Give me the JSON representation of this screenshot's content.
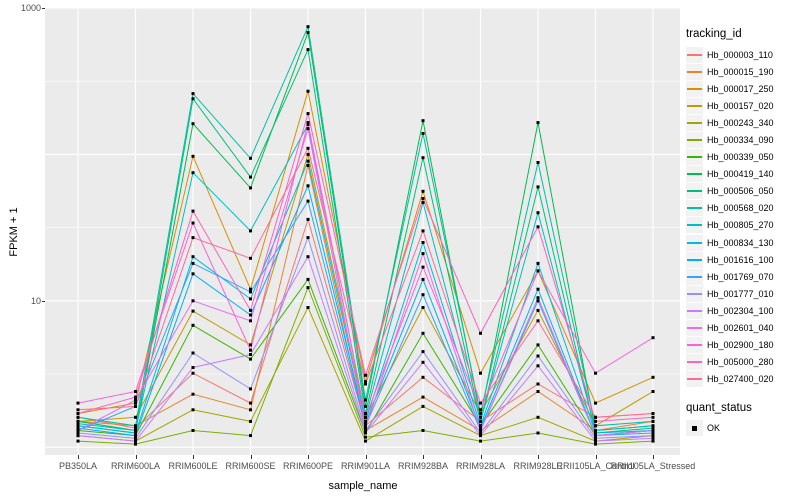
{
  "chart_data": {
    "type": "line",
    "title": "",
    "xlabel": "sample_name",
    "ylabel": "FPKM + 1",
    "y_scale": "log10",
    "ylim": [
      1,
      1000
    ],
    "grid": true,
    "y_tick_labels": [
      {
        "label": "10",
        "value": 10
      },
      {
        "label": "1000",
        "value": 1000
      }
    ],
    "y_major_gridlines": [
      1,
      10,
      100,
      1000
    ],
    "y_minor_gridlines": [
      3.162,
      31.62,
      316.2
    ],
    "categories": [
      "PB350LA",
      "RRIM600LA",
      "RRIM600LE",
      "RRIM600SE",
      "RRIM600PE",
      "RRIM901LA",
      "RRIM928BA",
      "RRIM928LA",
      "RRIM928LE",
      "RRII105LA_Control",
      "RRII105LA_Stressed"
    ],
    "point_marker": {
      "shape": "square",
      "color": "#000000",
      "size": 3
    },
    "legend": {
      "title": "tracking_id",
      "position": "right"
    },
    "legend2": {
      "title": "quant_status",
      "items": [
        {
          "label": "OK",
          "marker": "black-square"
        }
      ]
    },
    "colors": {
      "panel_bg": "#EBEBEB",
      "grid": "#FFFFFF",
      "axis_text": "#4D4D4D",
      "axis_title": "#000000",
      "tick": "#333333",
      "legend_key_bg": "#F2F2F2"
    },
    "series": [
      {
        "name": "Hb_000003_110",
        "color": "#F8766D",
        "values": [
          1.6,
          1.35,
          3.2,
          2.0,
          36,
          1.4,
          3.0,
          1.5,
          2.7,
          1.6,
          1.7
        ]
      },
      {
        "name": "Hb_000015_190",
        "color": "#EA8331",
        "values": [
          1.5,
          1.4,
          2.3,
          1.8,
          84,
          1.3,
          2.2,
          1.3,
          2.4,
          1.3,
          1.5
        ]
      },
      {
        "name": "Hb_000017_250",
        "color": "#D89000",
        "values": [
          1.7,
          2.0,
          97,
          12,
          270,
          2.8,
          56,
          3.2,
          16,
          2.0,
          3.0
        ]
      },
      {
        "name": "Hb_000157_020",
        "color": "#C09B00",
        "values": [
          1.5,
          1.6,
          8.5,
          5.0,
          100,
          1.6,
          9.0,
          1.7,
          8.6,
          1.4,
          2.4
        ]
      },
      {
        "name": "Hb_000243_340",
        "color": "#A3A500",
        "values": [
          1.2,
          1.1,
          1.8,
          1.5,
          9.0,
          1.1,
          1.9,
          1.2,
          1.6,
          1.1,
          1.2
        ]
      },
      {
        "name": "Hb_000334_090",
        "color": "#7CAE00",
        "values": [
          1.1,
          1.05,
          1.3,
          1.2,
          12.3,
          1.17,
          1.3,
          1.1,
          1.25,
          1.05,
          1.1
        ]
      },
      {
        "name": "Hb_000339_050",
        "color": "#39B600",
        "values": [
          1.3,
          1.2,
          6.8,
          4.0,
          14,
          1.25,
          6.0,
          1.4,
          5.0,
          1.2,
          1.3
        ]
      },
      {
        "name": "Hb_000419_140",
        "color": "#00BB4E",
        "values": [
          1.5,
          1.3,
          162,
          59,
          680,
          1.9,
          170,
          1.6,
          165,
          1.3,
          1.4
        ]
      },
      {
        "name": "Hb_000506_050",
        "color": "#00BF7D",
        "values": [
          1.4,
          1.25,
          240,
          70,
          520,
          1.7,
          95,
          1.5,
          60,
          1.25,
          1.35
        ]
      },
      {
        "name": "Hb_000568_020",
        "color": "#00C1A3",
        "values": [
          1.6,
          1.4,
          260,
          94,
          745,
          2.1,
          139,
          1.7,
          88,
          1.4,
          1.5
        ]
      },
      {
        "name": "Hb_000805_270",
        "color": "#00BFC4",
        "values": [
          1.45,
          1.3,
          75,
          30,
          160,
          1.6,
          47,
          1.5,
          40,
          1.3,
          1.4
        ]
      },
      {
        "name": "Hb_000834_130",
        "color": "#00BAE0",
        "values": [
          1.4,
          1.25,
          20,
          10.3,
          90,
          1.5,
          25,
          1.4,
          18,
          1.25,
          1.3
        ]
      },
      {
        "name": "Hb_001616_100",
        "color": "#00B0F6",
        "values": [
          1.35,
          1.2,
          15.3,
          8.0,
          61,
          1.45,
          14,
          1.35,
          12,
          1.2,
          1.3
        ]
      },
      {
        "name": "Hb_001769_070",
        "color": "#35A2FF",
        "values": [
          1.3,
          1.9,
          18,
          11.5,
          48,
          1.4,
          11,
          1.3,
          10,
          1.2,
          1.25
        ]
      },
      {
        "name": "Hb_001777_010",
        "color": "#9590FF",
        "values": [
          1.25,
          1.15,
          4.4,
          2.5,
          27,
          1.3,
          4.5,
          1.25,
          4.2,
          1.15,
          1.2
        ]
      },
      {
        "name": "Hb_002304_100",
        "color": "#C77CFF",
        "values": [
          1.2,
          1.1,
          3.5,
          4.3,
          20,
          1.25,
          3.8,
          1.2,
          3.6,
          1.1,
          1.15
        ]
      },
      {
        "name": "Hb_002601_040",
        "color": "#E76BF3",
        "values": [
          1.3,
          2.1,
          10,
          7.3,
          150,
          1.35,
          21,
          1.3,
          10.5,
          1.2,
          1.3
        ]
      },
      {
        "name": "Hb_002900_180",
        "color": "#FA62DB",
        "values": [
          2.0,
          2.4,
          34,
          4.6,
          165,
          1.6,
          17,
          1.8,
          16,
          3.2,
          5.6
        ]
      },
      {
        "name": "Hb_005000_280",
        "color": "#FF62BC",
        "values": [
          1.7,
          2.2,
          41,
          8.6,
          190,
          3.1,
          50,
          6.0,
          32,
          1.5,
          1.6
        ]
      },
      {
        "name": "Hb_027400_020",
        "color": "#FF6A98",
        "values": [
          1.8,
          1.9,
          27,
          19.5,
          110,
          2.7,
          30,
          2.0,
          7.3,
          1.6,
          1.7
        ]
      }
    ]
  }
}
